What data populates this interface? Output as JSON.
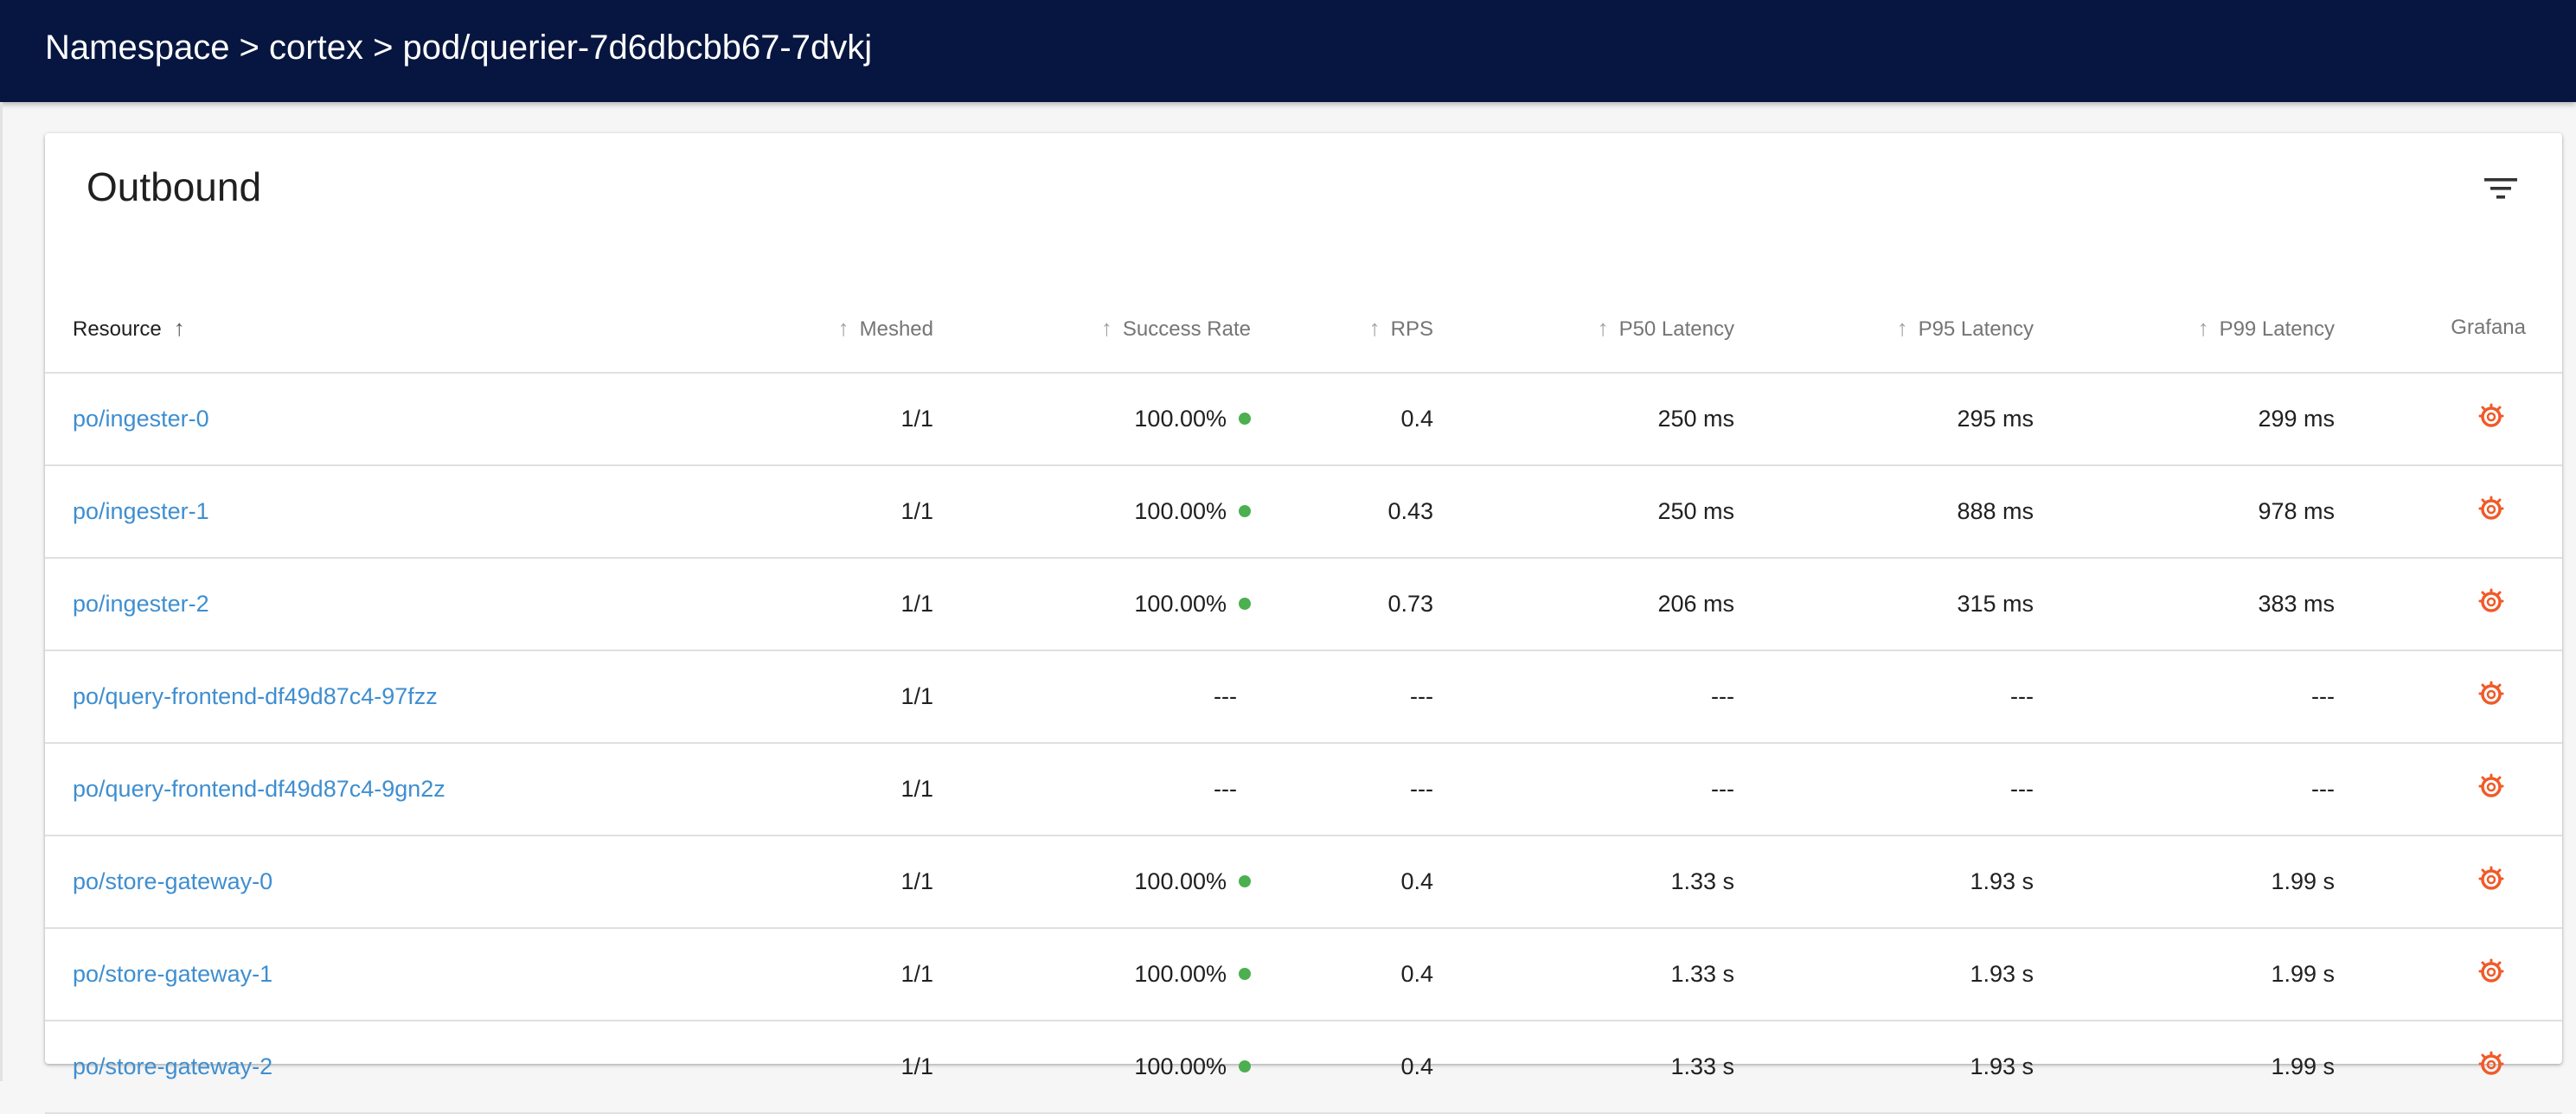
{
  "breadcrumb": "Namespace > cortex > pod/querier-7d6dbcbb67-7dvkj",
  "card_title": "Outbound",
  "colors": {
    "header_bg": "#071640",
    "link": "#3e8ed0",
    "success_dot": "#4caf50",
    "grafana": "#f05a28"
  },
  "columns": {
    "resource": "Resource",
    "meshed": "Meshed",
    "success_rate": "Success Rate",
    "rps": "RPS",
    "p50": "P50 Latency",
    "p95": "P95 Latency",
    "p99": "P99 Latency",
    "grafana": "Grafana"
  },
  "rows": [
    {
      "resource": "po/ingester-0",
      "meshed": "1/1",
      "success_rate": "100.00%",
      "has_rate": true,
      "rps": "0.4",
      "p50": "250 ms",
      "p95": "295 ms",
      "p99": "299 ms",
      "grafana_icon": "grafana-icon"
    },
    {
      "resource": "po/ingester-1",
      "meshed": "1/1",
      "success_rate": "100.00%",
      "has_rate": true,
      "rps": "0.43",
      "p50": "250 ms",
      "p95": "888 ms",
      "p99": "978 ms",
      "grafana_icon": "grafana-icon"
    },
    {
      "resource": "po/ingester-2",
      "meshed": "1/1",
      "success_rate": "100.00%",
      "has_rate": true,
      "rps": "0.73",
      "p50": "206 ms",
      "p95": "315 ms",
      "p99": "383 ms",
      "grafana_icon": "grafana-icon"
    },
    {
      "resource": "po/query-frontend-df49d87c4-97fzz",
      "meshed": "1/1",
      "success_rate": "---",
      "has_rate": false,
      "rps": "---",
      "p50": "---",
      "p95": "---",
      "p99": "---",
      "grafana_icon": "grafana-icon"
    },
    {
      "resource": "po/query-frontend-df49d87c4-9gn2z",
      "meshed": "1/1",
      "success_rate": "---",
      "has_rate": false,
      "rps": "---",
      "p50": "---",
      "p95": "---",
      "p99": "---",
      "grafana_icon": "grafana-icon"
    },
    {
      "resource": "po/store-gateway-0",
      "meshed": "1/1",
      "success_rate": "100.00%",
      "has_rate": true,
      "rps": "0.4",
      "p50": "1.33 s",
      "p95": "1.93 s",
      "p99": "1.99 s",
      "grafana_icon": "grafana-icon"
    },
    {
      "resource": "po/store-gateway-1",
      "meshed": "1/1",
      "success_rate": "100.00%",
      "has_rate": true,
      "rps": "0.4",
      "p50": "1.33 s",
      "p95": "1.93 s",
      "p99": "1.99 s",
      "grafana_icon": "grafana-icon"
    },
    {
      "resource": "po/store-gateway-2",
      "meshed": "1/1",
      "success_rate": "100.00%",
      "has_rate": true,
      "rps": "0.4",
      "p50": "1.33 s",
      "p95": "1.93 s",
      "p99": "1.99 s",
      "grafana_icon": "grafana-icon"
    }
  ]
}
